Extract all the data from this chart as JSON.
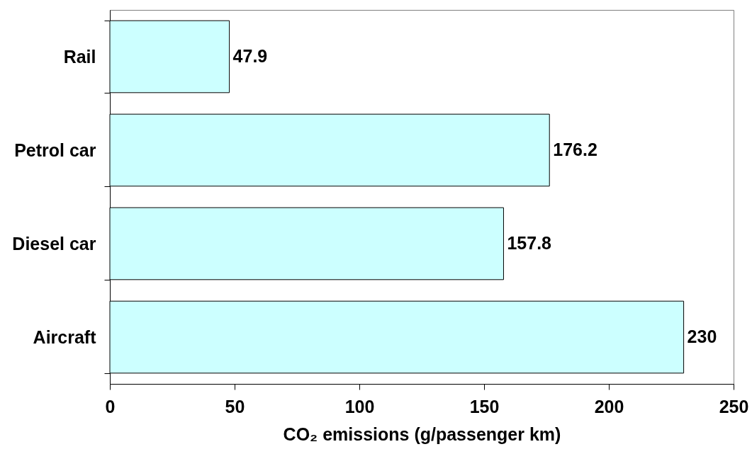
{
  "chart_data": {
    "type": "bar",
    "orientation": "horizontal",
    "categories": [
      "Rail",
      "Petrol car",
      "Diesel car",
      "Aircraft"
    ],
    "values": [
      47.9,
      176.2,
      157.8,
      230
    ],
    "color": "#ccffff",
    "xlim": [
      0,
      250
    ],
    "xticks": [
      0,
      50,
      100,
      150,
      200,
      250
    ],
    "xlabel": "CO₂ emissions (g/passenger km)",
    "data_labels": true
  }
}
